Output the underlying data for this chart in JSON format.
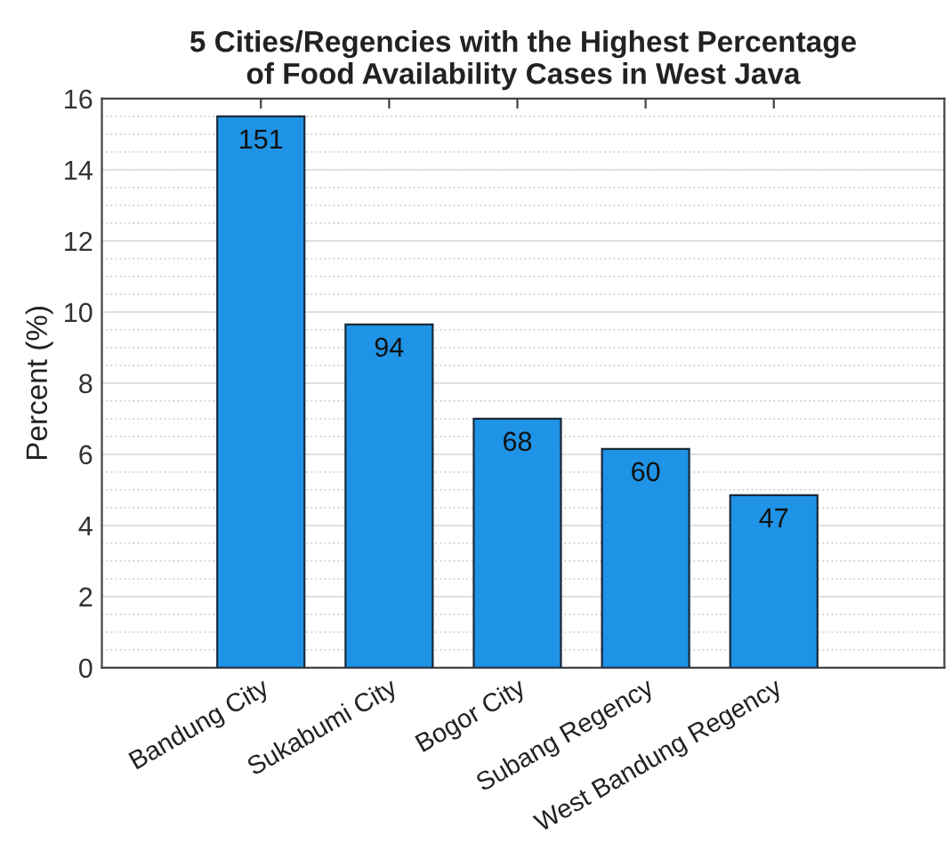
{
  "chart_data": {
    "type": "bar",
    "title": "5 Cities/Regencies with the Highest Percentage\nof Food Availability Cases in West Java",
    "ylabel": "Percent (%)",
    "categories": [
      "Bandung City",
      "Sukabumi City",
      "Bogor City",
      "Subang Regency",
      "West Bandung Regency"
    ],
    "values": [
      15.5,
      9.65,
      7.0,
      6.15,
      4.85
    ],
    "annotations": [
      {
        "text": "151",
        "x": "Bandung City",
        "y": 15.5
      },
      {
        "text": "94",
        "x": "Sukabumi City",
        "y": 9.65
      },
      {
        "text": "68",
        "x": "Bogor City",
        "y": 7.0
      },
      {
        "text": "60",
        "x": "Subang Regency",
        "y": 6.15
      },
      {
        "text": "47",
        "x": "West Bandung Regency",
        "y": 4.85
      }
    ],
    "color": "#1f93e6",
    "ylim": [
      0,
      16
    ],
    "yticks": [
      0,
      2,
      4,
      6,
      8,
      10,
      12,
      14,
      16
    ],
    "grid": true
  }
}
